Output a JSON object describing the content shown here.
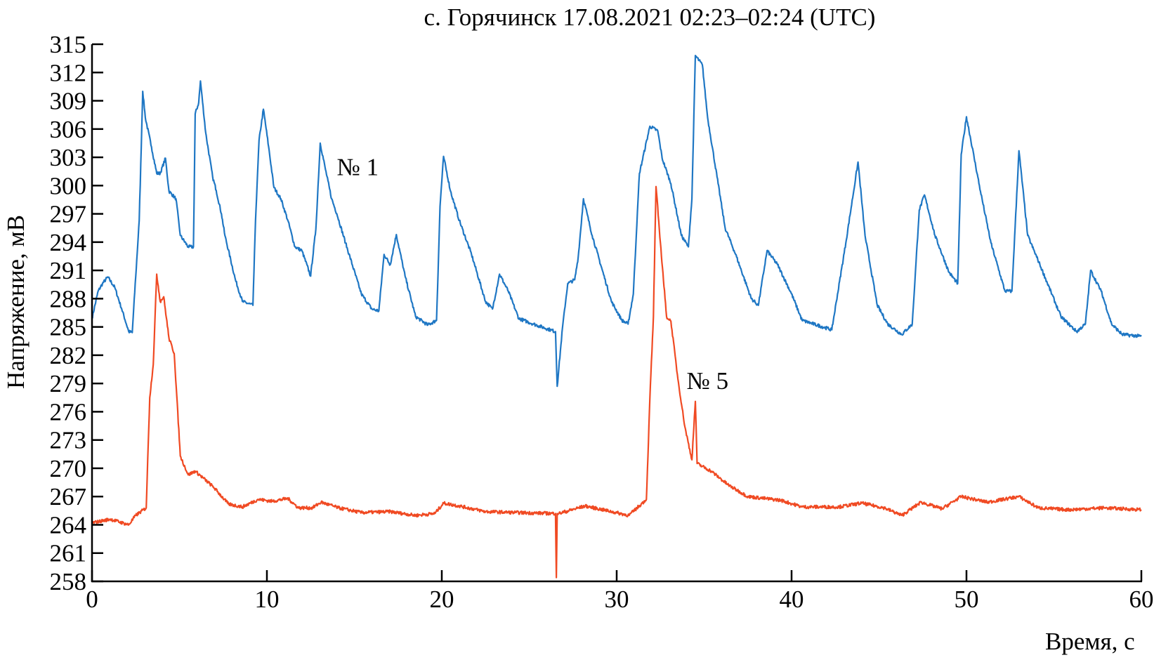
{
  "chart_data": {
    "type": "line",
    "title": "с. Горячинск 17.08.2021 02:23–02:24 (UTC)",
    "xlabel": "Время, с",
    "ylabel": "Напряжение, мВ",
    "xlim": [
      0,
      60
    ],
    "ylim": [
      258,
      315
    ],
    "xticks": [
      0,
      10,
      20,
      30,
      40,
      50,
      60
    ],
    "yticks": [
      315,
      312,
      309,
      306,
      303,
      300,
      297,
      294,
      291,
      288,
      285,
      282,
      279,
      276,
      273,
      270,
      267,
      264,
      261,
      258
    ],
    "grid": false,
    "annotations": [
      {
        "text": "№ 1",
        "series": "№ 1",
        "x": 14.8,
        "y": 302
      },
      {
        "text": "№ 5",
        "series": "№ 5",
        "x": 34.8,
        "y": 279.3
      }
    ],
    "series": [
      {
        "name": "№ 1",
        "color": "#1f77c4",
        "x": [
          0,
          0.35,
          0.6,
          0.9,
          1.3,
          1.7,
          2.1,
          2.3,
          2.5,
          2.7,
          2.9,
          3.05,
          3.4,
          3.7,
          3.9,
          4.2,
          4.4,
          4.8,
          5.05,
          5.5,
          5.8,
          5.9,
          6.1,
          6.2,
          6.5,
          6.9,
          7.1,
          7.4,
          7.6,
          8.2,
          8.6,
          9.2,
          9.35,
          9.55,
          9.8,
          10.1,
          10.4,
          10.8,
          11.2,
          11.6,
          12,
          12.5,
          12.8,
          13.05,
          13.35,
          13.7,
          14,
          14.5,
          15.4,
          16,
          16.4,
          16.7,
          17.05,
          17.4,
          17.9,
          18.5,
          19.2,
          19.7,
          19.9,
          20.1,
          20.5,
          21,
          21.7,
          22.5,
          22.9,
          23.3,
          23.8,
          24.4,
          25.25,
          26.5,
          26.6,
          26.9,
          27.2,
          27.6,
          27.8,
          28.1,
          28.6,
          29.7,
          30.3,
          30.65,
          30.95,
          31.3,
          31.9,
          32.35,
          32.6,
          33.1,
          33.7,
          34.1,
          34.3,
          34.5,
          34.9,
          35.2,
          35.8,
          36.2,
          36.8,
          37.7,
          38.1,
          38.6,
          39.2,
          40,
          40.6,
          42.3,
          43.1,
          43.8,
          44.2,
          44.9,
          45.5,
          46.3,
          46.9,
          47.3,
          47.6,
          48.2,
          49,
          49.5,
          49.7,
          50,
          50.8,
          51.4,
          52.2,
          52.6,
          53,
          53.5,
          54.2,
          55.4,
          56.3,
          56.8,
          57.1,
          57.7,
          58.3,
          58.9,
          60
        ],
        "y": [
          285.9,
          288.8,
          289.6,
          290.3,
          289.2,
          286.9,
          284.5,
          284.4,
          290.4,
          296.3,
          310,
          307.2,
          304.1,
          301.3,
          301.3,
          302.9,
          299.4,
          298.6,
          294.7,
          293.5,
          293.5,
          307.6,
          308.8,
          311.1,
          305.6,
          300.9,
          299.5,
          297,
          294.7,
          290,
          287.7,
          287.3,
          296.3,
          304.8,
          308.1,
          304.1,
          299.8,
          298.6,
          296.3,
          293.5,
          293.1,
          290.4,
          295.4,
          304.5,
          301.7,
          298.6,
          297,
          293.9,
          288.5,
          286.9,
          286.7,
          292.7,
          291.6,
          294.8,
          290.4,
          286.1,
          285.2,
          285.7,
          297.8,
          303.1,
          299.4,
          296.3,
          292.7,
          287.7,
          286.9,
          290.6,
          288.8,
          285.9,
          285.3,
          284.5,
          278.7,
          284.9,
          289.6,
          290,
          292.4,
          298.6,
          294.7,
          287.7,
          285.7,
          285.3,
          288.5,
          301.3,
          306.3,
          305.8,
          302.9,
          300.2,
          294.7,
          293.5,
          298.6,
          313.8,
          312.8,
          307.2,
          300.2,
          295.5,
          292.7,
          288,
          287.3,
          293.1,
          291.6,
          288.5,
          285.7,
          284.7,
          293.9,
          302.5,
          294.7,
          287.3,
          285.3,
          284.2,
          285.3,
          297.4,
          299,
          294.7,
          290.8,
          289.6,
          303.3,
          307.3,
          299.4,
          293.9,
          288.8,
          288.8,
          303.7,
          294.7,
          291.6,
          286.1,
          284.5,
          285.3,
          291,
          288.8,
          285.3,
          284.2,
          284
        ]
      },
      {
        "name": "№ 5",
        "color": "#f04a23",
        "x": [
          0,
          1.05,
          2.1,
          2.5,
          3.1,
          3.3,
          3.5,
          3.7,
          3.9,
          4.1,
          4.4,
          4.7,
          5.05,
          5.5,
          5.9,
          6.95,
          7.8,
          8.6,
          9.5,
          10.3,
          11.2,
          11.8,
          12.6,
          13.1,
          14.1,
          15.4,
          17.05,
          18.5,
          19.6,
          20.1,
          21,
          22.5,
          24.2,
          26.5,
          26.55,
          26.6,
          26.7,
          28.2,
          29.7,
          30.7,
          31.4,
          31.7,
          31.9,
          32.1,
          32.25,
          32.5,
          32.85,
          33.1,
          33.5,
          33.9,
          34.3,
          34.5,
          34.6,
          35.4,
          36.4,
          37.5,
          39.4,
          40.6,
          42.7,
          44,
          45.3,
          46.3,
          47.4,
          48.6,
          49.7,
          51.2,
          53,
          54.1,
          55.8,
          57.9,
          60
        ],
        "y": [
          264.2,
          264.6,
          264,
          265,
          265.8,
          277.5,
          281,
          290.6,
          287.7,
          288.2,
          283.8,
          282.2,
          271.3,
          269.3,
          269.7,
          268,
          266.2,
          265.9,
          266.7,
          266.5,
          266.8,
          265.8,
          265.8,
          266.4,
          265.8,
          265.3,
          265.4,
          265,
          265.2,
          266.3,
          266,
          265.4,
          265.3,
          265.2,
          258.4,
          265.2,
          265.2,
          266,
          265.4,
          265,
          266.2,
          266.7,
          277.5,
          286.1,
          299.9,
          293.9,
          286.1,
          285.6,
          279.5,
          274.4,
          270.9,
          277.1,
          270.5,
          269.7,
          268.2,
          267,
          266.6,
          265.9,
          265.9,
          266.3,
          265.8,
          265,
          266.4,
          265.7,
          267,
          266.4,
          267,
          265.8,
          265.6,
          265.8,
          265.6
        ]
      }
    ]
  }
}
